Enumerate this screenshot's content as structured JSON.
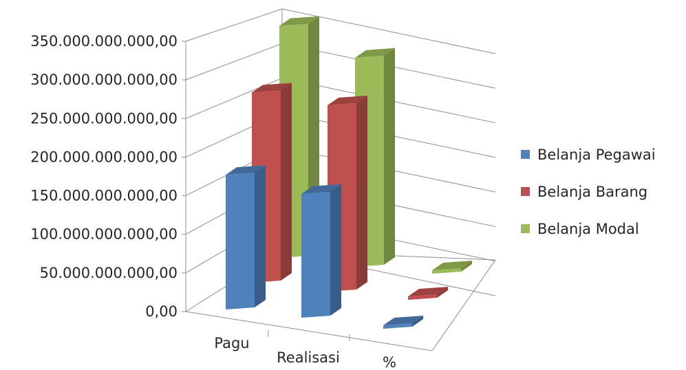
{
  "chart_data": {
    "type": "bar",
    "variant": "3d-column-clustered-depth",
    "categories": [
      "Pagu",
      "Realisasi",
      "%"
    ],
    "series": [
      {
        "name": "Belanja Pegawai",
        "values": [
          177000000000,
          163000000000,
          0
        ],
        "color": "#4f81bd"
      },
      {
        "name": "Belanja Barang",
        "values": [
          250000000000,
          245000000000,
          0
        ],
        "color": "#c0504d"
      },
      {
        "name": "Belanja Modal",
        "values": [
          305000000000,
          275000000000,
          0
        ],
        "color": "#9bbb59"
      }
    ],
    "y_ticks": [
      "0,00",
      "50.000.000.000,00",
      "100.000.000.000,00",
      "150.000.000.000,00",
      "200.000.000.000,00",
      "250.000.000.000,00",
      "300.000.000.000,00",
      "350.000.000.000,00"
    ],
    "ylim": [
      0,
      350000000000
    ],
    "title": "",
    "xlabel": "",
    "ylabel": "",
    "grid": true,
    "legend_position": "right"
  }
}
